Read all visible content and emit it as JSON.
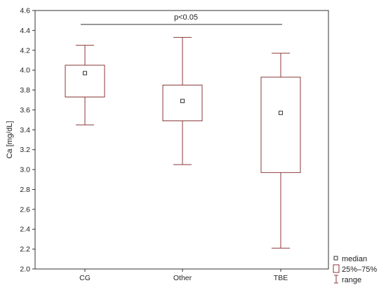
{
  "chart_data": {
    "type": "box",
    "title": "",
    "xlabel": "",
    "ylabel": "Ca [mg/dL]",
    "ylim": [
      2.0,
      4.6
    ],
    "yticks": [
      "2.0",
      "2.2",
      "2.4",
      "2.6",
      "2.8",
      "3.0",
      "3.2",
      "3.4",
      "3.6",
      "3.8",
      "4.0",
      "4.2",
      "4.4",
      "4.6"
    ],
    "grid": false,
    "legend_position": "bottom-right outside",
    "categories": [
      "CG",
      "Other",
      "TBE"
    ],
    "boxes": [
      {
        "category": "CG",
        "min": 3.45,
        "q1": 3.73,
        "median": 3.97,
        "q3": 4.05,
        "max": 4.25
      },
      {
        "category": "Other",
        "min": 3.05,
        "q1": 3.49,
        "median": 3.69,
        "q3": 3.85,
        "max": 4.33
      },
      {
        "category": "TBE",
        "min": 2.21,
        "q1": 2.97,
        "median": 3.57,
        "q3": 3.93,
        "max": 4.17
      }
    ],
    "annotation": {
      "text": "p<0.05",
      "from": "CG",
      "to": "TBE",
      "y": 4.46
    },
    "legend": {
      "median": "median",
      "box": "25%–75%",
      "range": "range"
    },
    "colors": {
      "box": "#8b3a3a",
      "axis": "#333333",
      "text": "#222222"
    }
  }
}
